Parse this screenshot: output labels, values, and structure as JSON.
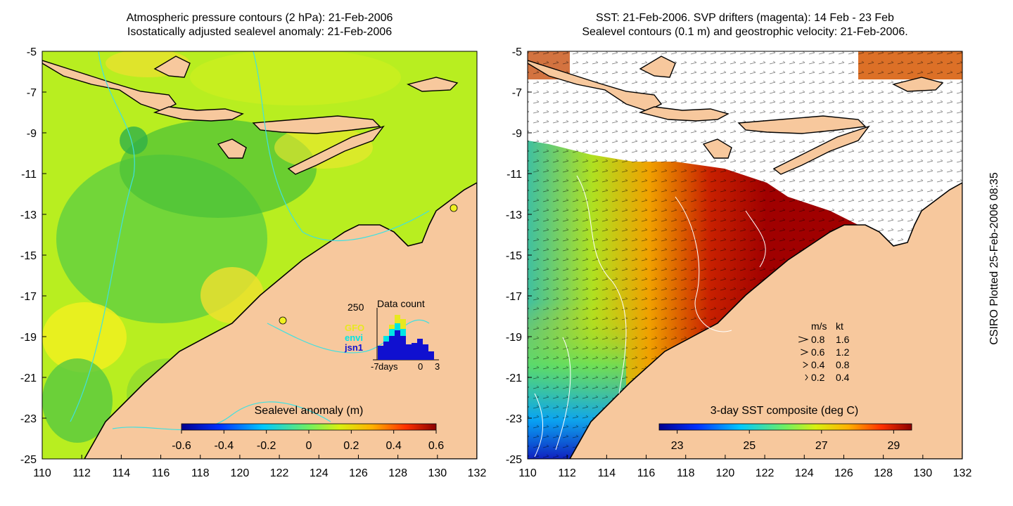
{
  "left_panel": {
    "title_line1": "Atmospheric pressure contours (2 hPa): 21-Feb-2006",
    "title_line2": "Isostatically adjusted sealevel anomaly: 21-Feb-2006",
    "colorbar": {
      "label": "Sealevel anomaly (m)",
      "ticks": [
        "-0.6",
        "-0.4",
        "-0.2",
        "0",
        "0.2",
        "0.4",
        "0.6"
      ],
      "range": [
        -0.6,
        0.6
      ]
    },
    "inset": {
      "title": "Data count",
      "y_max_label": "250",
      "legend": [
        {
          "name": "GFO",
          "color": "#e8e820"
        },
        {
          "name": "envi",
          "color": "#00e5e5"
        },
        {
          "name": "jsn1",
          "color": "#1010d0"
        }
      ],
      "x_label": "days",
      "x_ticks": [
        "-7",
        "0",
        "3"
      ]
    }
  },
  "right_panel": {
    "title_line1": "SST: 21-Feb-2006. SVP drifters (magenta): 14 Feb - 23 Feb",
    "title_line2": "Sealevel contours (0.1 m) and geostrophic velocity: 21-Feb-2006.",
    "colorbar": {
      "label": "3-day SST composite (deg C)",
      "ticks": [
        "23",
        "25",
        "27",
        "29"
      ],
      "range": [
        22.5,
        29.5
      ]
    },
    "velocity_legend": {
      "header_ms": "m/s",
      "header_kt": "kt",
      "rows": [
        {
          "ms": "0.8",
          "kt": "1.6"
        },
        {
          "ms": "0.6",
          "kt": "1.2"
        },
        {
          "ms": "0.4",
          "kt": "0.8"
        },
        {
          "ms": "0.2",
          "kt": "0.4"
        }
      ]
    }
  },
  "axes": {
    "x_ticks": [
      "110",
      "112",
      "114",
      "116",
      "118",
      "120",
      "122",
      "124",
      "126",
      "128",
      "130",
      "132"
    ],
    "y_ticks": [
      "-5",
      "-7",
      "-9",
      "-11",
      "-13",
      "-15",
      "-17",
      "-19",
      "-21",
      "-23",
      "-25"
    ],
    "lon_range": [
      110,
      132
    ],
    "lat_range": [
      -25,
      -5
    ]
  },
  "stamp": "CSIRO Plotted 25-Feb-2006 08:35",
  "colors": {
    "land": "#f7c89d",
    "coast": "#000000",
    "contour": "#40e0e0",
    "sst_warm": "#a00000",
    "ssh_background": "#b8ee20"
  }
}
